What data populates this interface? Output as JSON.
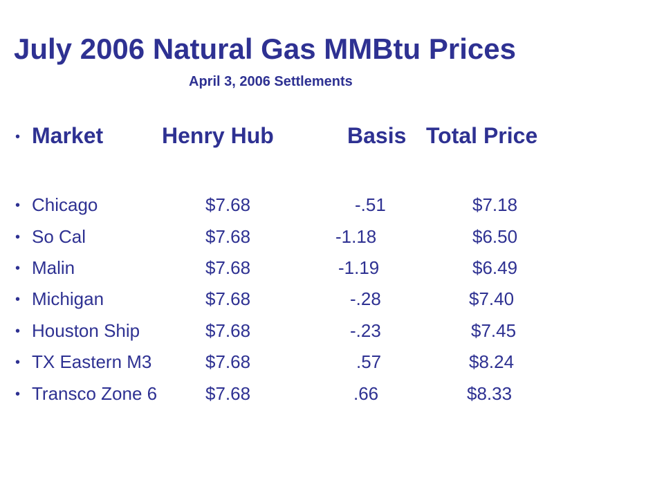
{
  "title": "July 2006 Natural Gas MMBtu Prices",
  "subtitle": "April 3, 2006 Settlements",
  "bullet_glyph": "•",
  "colors": {
    "text": "#2e3192",
    "background": "#ffffff"
  },
  "table": {
    "headers": {
      "market": "Market",
      "henry_hub": "Henry Hub",
      "basis": "Basis",
      "total": "Total Price"
    },
    "rows": [
      {
        "market": "Chicago",
        "henry_hub": "$7.68",
        "basis": "-.51",
        "total": "$7.18"
      },
      {
        "market": "So Cal",
        "henry_hub": "$7.68",
        "basis": "-1.18",
        "total": "$6.50"
      },
      {
        "market": "Malin",
        "henry_hub": "$7.68",
        "basis": "-1.19",
        "total": "$6.49"
      },
      {
        "market": "Michigan",
        "henry_hub": "$7.68",
        "basis": "-.28",
        "total": "$7.40"
      },
      {
        "market": "Houston Ship",
        "henry_hub": "$7.68",
        "basis": "-.23",
        "total": "$7.45"
      },
      {
        "market": "TX Eastern M3",
        "henry_hub": "$7.68",
        "basis": ".57",
        "total": "$8.24"
      },
      {
        "market": "Transco Zone 6",
        "henry_hub": "$7.68",
        "basis": ".66",
        "total": "$8.33"
      }
    ]
  }
}
